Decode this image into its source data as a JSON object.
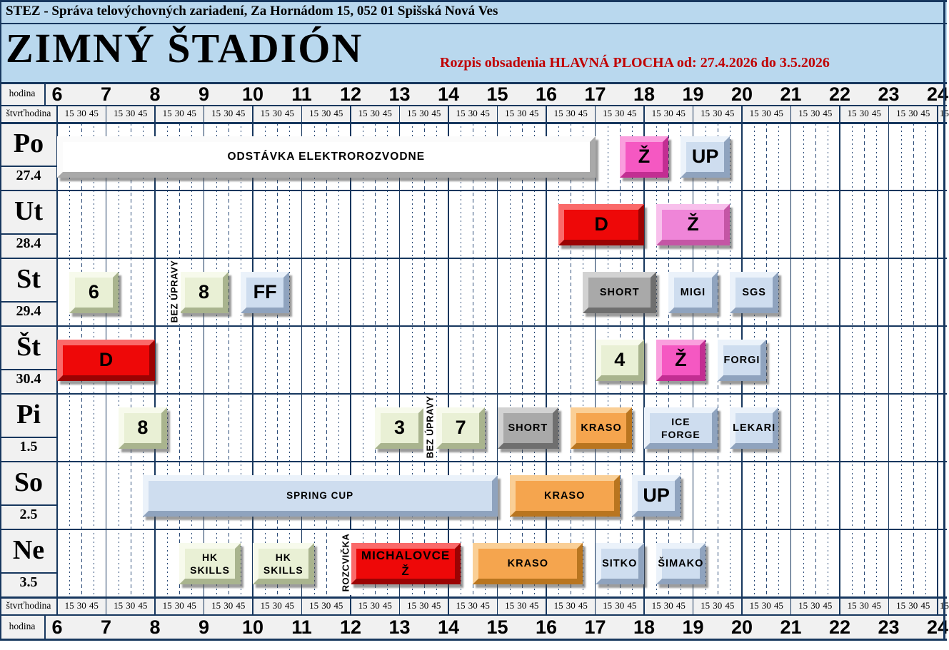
{
  "header": {
    "company": "STEZ - Správa telovýchovných zariadení, Za Hornádom 15, 052 01 Spišská Nová Ves",
    "title": "ZIMNÝ ŠTADIÓN",
    "subtitle": "Rozpis obsadenia HLAVNÁ PLOCHA od:  27.4.2026 do 3.5.2026"
  },
  "axis": {
    "hour_label": "hodina",
    "quarter_label": "štvrťhodina",
    "quarter_marks": [
      "15",
      "30",
      "45"
    ],
    "hours": [
      6,
      7,
      8,
      9,
      10,
      11,
      12,
      13,
      14,
      15,
      16,
      17,
      18,
      19,
      20,
      21,
      22,
      23,
      24
    ],
    "overflow_quarter": "15"
  },
  "palette": {
    "white": {
      "face": "#FFFFFF",
      "hi": "#FBFBFB",
      "lo": "#A9A9A9"
    },
    "pink": {
      "face": "#F558C2",
      "hi": "#FA9FDE",
      "lo": "#C22E92"
    },
    "pinklight": {
      "face": "#EF85D8",
      "hi": "#F8C0EC",
      "lo": "#C456A5"
    },
    "red": {
      "face": "#EE0808",
      "hi": "#FA6A6A",
      "lo": "#9B0303"
    },
    "green": {
      "face": "#E9F0D5",
      "hi": "#F7FAEC",
      "lo": "#A9B48E"
    },
    "bluegray": {
      "face": "#CEDDEF",
      "hi": "#EBF2FA",
      "lo": "#8FA3BE"
    },
    "gray": {
      "face": "#A9A9A9",
      "hi": "#D2D2D2",
      "lo": "#6F6F6F"
    },
    "orange": {
      "face": "#F5A54E",
      "hi": "#FACF96",
      "lo": "#B9751F"
    }
  },
  "chart_data": {
    "type": "gantt",
    "title": "ZIMNÝ ŠTADIÓN",
    "subtitle": "Rozpis obsadenia HLAVNÁ PLOCHA od: 27.4.2026 do 3.5.2026",
    "x_axis": {
      "unit": "hodina",
      "min": 6,
      "max": 24,
      "quarters": [
        15,
        30,
        45
      ]
    },
    "rows": [
      {
        "day": "Po",
        "date": "27.4",
        "events": [
          {
            "label": "ODSTÁVKA  ELEKTROROZVODNE",
            "start": 6,
            "end": 17,
            "color": "white"
          },
          {
            "label": "Ž",
            "start": 17.5,
            "end": 18.5,
            "color": "pink"
          },
          {
            "label": "UP",
            "start": 18.75,
            "end": 19.75,
            "color": "bluegray"
          }
        ],
        "notes": []
      },
      {
        "day": "Ut",
        "date": "28.4",
        "events": [
          {
            "label": "D",
            "start": 16.25,
            "end": 18,
            "color": "red"
          },
          {
            "label": "Ž",
            "start": 18.25,
            "end": 19.75,
            "color": "pinklight"
          }
        ],
        "notes": []
      },
      {
        "day": "St",
        "date": "29.4",
        "events": [
          {
            "label": "6",
            "start": 6.25,
            "end": 7.25,
            "color": "green"
          },
          {
            "label": "8",
            "start": 8.5,
            "end": 9.5,
            "color": "green"
          },
          {
            "label": "FF",
            "start": 9.75,
            "end": 10.75,
            "color": "bluegray"
          },
          {
            "label": "SHORT",
            "start": 16.75,
            "end": 18.25,
            "color": "gray"
          },
          {
            "label": "MIGI",
            "start": 18.5,
            "end": 19.5,
            "color": "bluegray"
          },
          {
            "label": "SGS",
            "start": 19.75,
            "end": 20.75,
            "color": "bluegray"
          }
        ],
        "notes": [
          {
            "label": "BEZ ÚPRAVY",
            "at": 8.39
          }
        ]
      },
      {
        "day": "Št",
        "date": "30.4",
        "events": [
          {
            "label": "D",
            "start": 6,
            "end": 8,
            "color": "red"
          },
          {
            "label": "4",
            "start": 17,
            "end": 18,
            "color": "green"
          },
          {
            "label": "Ž",
            "start": 18.25,
            "end": 19.25,
            "color": "pink"
          },
          {
            "label": "FORGI",
            "start": 19.5,
            "end": 20.5,
            "color": "bluegray"
          }
        ],
        "notes": []
      },
      {
        "day": "Pi",
        "date": "1.5",
        "events": [
          {
            "label": "8",
            "start": 7.25,
            "end": 8.25,
            "color": "green"
          },
          {
            "label": "3",
            "start": 12.5,
            "end": 13.5,
            "color": "green"
          },
          {
            "label": "7",
            "start": 13.75,
            "end": 14.75,
            "color": "green"
          },
          {
            "label": "SHORT",
            "start": 15,
            "end": 16.25,
            "color": "gray"
          },
          {
            "label": "KRASO",
            "start": 16.5,
            "end": 17.75,
            "color": "orange"
          },
          {
            "label": "ICE FORGE",
            "lines": [
              "ICE",
              "FORGE"
            ],
            "start": 18,
            "end": 19.5,
            "color": "bluegray"
          },
          {
            "label": "LEKARI",
            "start": 19.75,
            "end": 20.75,
            "color": "bluegray"
          }
        ],
        "notes": [
          {
            "label": "BEZ ÚPRAVY",
            "at": 13.62
          }
        ]
      },
      {
        "day": "So",
        "date": "2.5",
        "events": [
          {
            "label": "SPRING CUP",
            "start": 7.75,
            "end": 15,
            "color": "bluegray"
          },
          {
            "label": "KRASO",
            "start": 15.25,
            "end": 17.5,
            "color": "orange"
          },
          {
            "label": "UP",
            "start": 17.75,
            "end": 18.75,
            "color": "bluegray"
          }
        ],
        "notes": []
      },
      {
        "day": "Ne",
        "date": "3.5",
        "events": [
          {
            "label": "HK SKILLS",
            "lines": [
              "HK",
              "SKILLS"
            ],
            "start": 8.5,
            "end": 9.75,
            "color": "green"
          },
          {
            "label": "HK SKILLS",
            "lines": [
              "HK",
              "SKILLS"
            ],
            "start": 10,
            "end": 11.25,
            "color": "green"
          },
          {
            "label": "MICHALOVCE Ž",
            "lines": [
              "MICHALOVCE",
              "Ž"
            ],
            "start": 12,
            "end": 14.25,
            "color": "red"
          },
          {
            "label": "KRASO",
            "start": 14.5,
            "end": 16.75,
            "color": "orange"
          },
          {
            "label": "SITKO",
            "start": 17,
            "end": 18,
            "color": "bluegray"
          },
          {
            "label": "ŠIMAKO",
            "start": 18.25,
            "end": 19.25,
            "color": "bluegray"
          }
        ],
        "notes": [
          {
            "label": "ROZCVIČKA",
            "at": 11.89
          }
        ]
      }
    ]
  }
}
